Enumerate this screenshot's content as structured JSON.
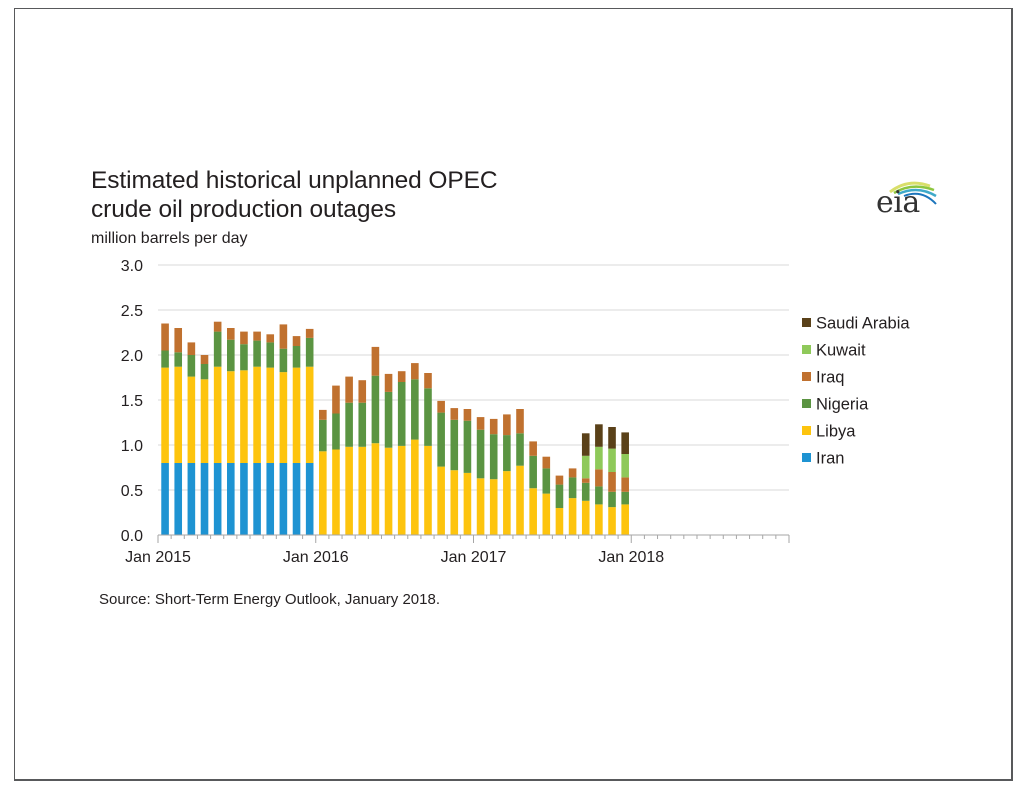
{
  "header": {
    "title_line1": "Estimated historical unplanned OPEC",
    "title_line2": "crude oil production outages",
    "units": "million barrels per day",
    "logo_text": "eia"
  },
  "footer": {
    "source": "Source: Short-Term Energy Outlook, January 2018."
  },
  "chart_data": {
    "type": "bar",
    "stacked": true,
    "title": "Estimated historical unplanned OPEC crude oil production outages",
    "ylabel": "million barrels per day",
    "xlabel": "",
    "ylim": [
      0,
      3.0
    ],
    "yticks": [
      "0.0",
      "0.5",
      "1.0",
      "1.5",
      "2.0",
      "2.5",
      "3.0"
    ],
    "ytick_values": [
      0,
      0.5,
      1.0,
      1.5,
      2.0,
      2.5,
      3.0
    ],
    "xtick_labels": [
      "Jan 2015",
      "Jan 2016",
      "Jan 2017",
      "Jan 2018"
    ],
    "x_range_months": 48,
    "grid": "horizontal",
    "legend_position": "right",
    "categories": [
      "Jan 2015",
      "Feb 2015",
      "Mar 2015",
      "Apr 2015",
      "May 2015",
      "Jun 2015",
      "Jul 2015",
      "Aug 2015",
      "Sep 2015",
      "Oct 2015",
      "Nov 2015",
      "Dec 2015",
      "Jan 2016",
      "Feb 2016",
      "Mar 2016",
      "Apr 2016",
      "May 2016",
      "Jun 2016",
      "Jul 2016",
      "Aug 2016",
      "Sep 2016",
      "Oct 2016",
      "Nov 2016",
      "Dec 2016",
      "Jan 2017",
      "Feb 2017",
      "Mar 2017",
      "Apr 2017",
      "May 2017",
      "Jun 2017",
      "Jul 2017",
      "Aug 2017",
      "Sep 2017",
      "Oct 2017",
      "Nov 2017",
      "Dec 2017"
    ],
    "series": [
      {
        "name": "Iran",
        "color": "#1e93d2",
        "values": [
          0.8,
          0.8,
          0.8,
          0.8,
          0.8,
          0.8,
          0.8,
          0.8,
          0.8,
          0.8,
          0.8,
          0.8,
          0,
          0,
          0,
          0,
          0,
          0,
          0,
          0,
          0,
          0,
          0,
          0,
          0,
          0,
          0,
          0,
          0,
          0,
          0,
          0,
          0,
          0,
          0,
          0
        ]
      },
      {
        "name": "Libya",
        "color": "#fdc40e",
        "values": [
          1.06,
          1.07,
          0.96,
          0.93,
          1.07,
          1.02,
          1.03,
          1.07,
          1.06,
          1.01,
          1.06,
          1.07,
          0.93,
          0.95,
          0.98,
          0.98,
          1.02,
          0.97,
          0.99,
          1.06,
          0.99,
          0.76,
          0.72,
          0.69,
          0.63,
          0.62,
          0.71,
          0.77,
          0.52,
          0.46,
          0.3,
          0.41,
          0.38,
          0.34,
          0.31,
          0.34
        ]
      },
      {
        "name": "Nigeria",
        "color": "#5b9442",
        "values": [
          0.19,
          0.16,
          0.24,
          0.17,
          0.39,
          0.35,
          0.29,
          0.29,
          0.28,
          0.26,
          0.24,
          0.32,
          0.35,
          0.4,
          0.49,
          0.49,
          0.75,
          0.62,
          0.71,
          0.67,
          0.64,
          0.6,
          0.56,
          0.58,
          0.54,
          0.5,
          0.4,
          0.36,
          0.36,
          0.28,
          0.26,
          0.23,
          0.2,
          0.2,
          0.17,
          0.14
        ]
      },
      {
        "name": "Iraq",
        "color": "#c0712f",
        "values": [
          0.3,
          0.27,
          0.14,
          0.1,
          0.11,
          0.13,
          0.14,
          0.1,
          0.09,
          0.27,
          0.11,
          0.1,
          0.11,
          0.31,
          0.29,
          0.25,
          0.32,
          0.2,
          0.12,
          0.18,
          0.17,
          0.13,
          0.13,
          0.13,
          0.14,
          0.17,
          0.23,
          0.27,
          0.16,
          0.13,
          0.1,
          0.1,
          0.05,
          0.19,
          0.22,
          0.16
        ]
      },
      {
        "name": "Kuwait",
        "color": "#8fc95a",
        "values": [
          0,
          0,
          0,
          0,
          0,
          0,
          0,
          0,
          0,
          0,
          0,
          0,
          0,
          0,
          0,
          0,
          0,
          0,
          0,
          0,
          0,
          0,
          0,
          0,
          0,
          0,
          0,
          0,
          0,
          0,
          0,
          0,
          0.25,
          0.25,
          0.26,
          0.26
        ]
      },
      {
        "name": "Saudi Arabia",
        "color": "#5a4119",
        "values": [
          0,
          0,
          0,
          0,
          0,
          0,
          0,
          0,
          0,
          0,
          0,
          0,
          0,
          0,
          0,
          0,
          0,
          0,
          0,
          0,
          0,
          0,
          0,
          0,
          0,
          0,
          0,
          0,
          0,
          0,
          0,
          0,
          0.25,
          0.25,
          0.24,
          0.24
        ]
      }
    ],
    "legend_order": [
      "Saudi Arabia",
      "Kuwait",
      "Iraq",
      "Nigeria",
      "Libya",
      "Iran"
    ]
  },
  "colors": {
    "gridline": "#d9d9d9",
    "axis": "#a6a6a6",
    "text": "#231f20",
    "frame": "#58595b"
  }
}
